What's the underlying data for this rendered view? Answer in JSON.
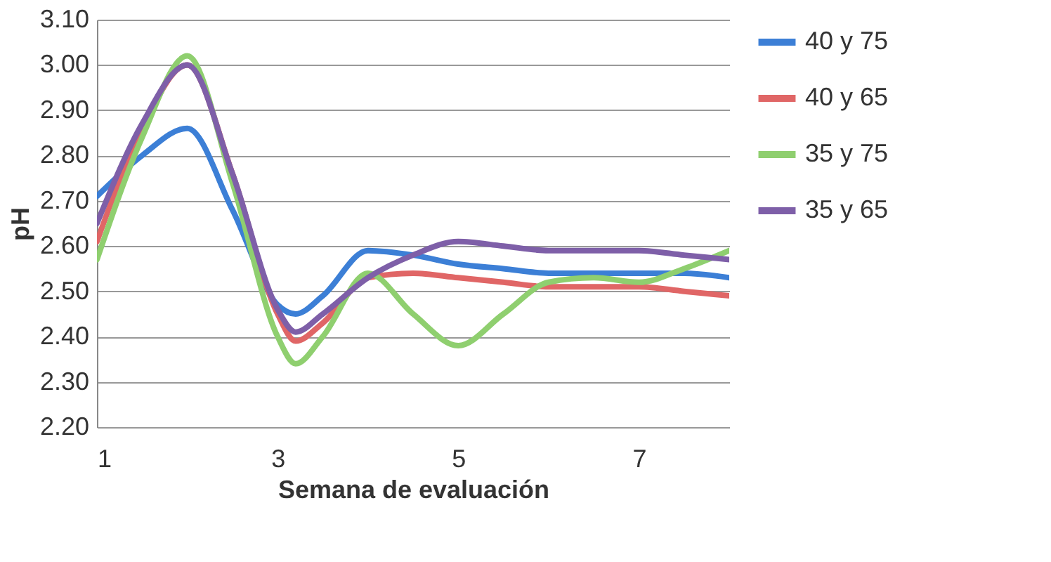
{
  "chart_data": {
    "type": "line",
    "xlabel": "Semana de evaluación",
    "ylabel": "pH",
    "x": [
      1,
      1.5,
      2,
      2.5,
      3,
      3.2,
      3.5,
      4,
      4.5,
      5,
      5.5,
      6,
      6.5,
      7,
      7.5,
      8
    ],
    "series": [
      {
        "name": "40 y 75",
        "color": "#3c7fd6",
        "values": [
          2.71,
          2.8,
          2.86,
          2.68,
          2.47,
          2.45,
          2.49,
          2.59,
          2.58,
          2.56,
          2.55,
          2.54,
          2.54,
          2.54,
          2.54,
          2.53
        ]
      },
      {
        "name": "40 y 65",
        "color": "#e06666",
        "values": [
          2.61,
          2.86,
          3.0,
          2.76,
          2.45,
          2.39,
          2.43,
          2.53,
          2.54,
          2.53,
          2.52,
          2.51,
          2.51,
          2.51,
          2.5,
          2.49
        ]
      },
      {
        "name": "35 y 75",
        "color": "#8fcf6f",
        "values": [
          2.57,
          2.84,
          3.02,
          2.74,
          2.4,
          2.34,
          2.4,
          2.54,
          2.45,
          2.38,
          2.45,
          2.52,
          2.53,
          2.52,
          2.55,
          2.59
        ]
      },
      {
        "name": "35 y 65",
        "color": "#7e5fa8",
        "values": [
          2.65,
          2.87,
          3.0,
          2.76,
          2.46,
          2.41,
          2.45,
          2.53,
          2.58,
          2.61,
          2.6,
          2.59,
          2.59,
          2.59,
          2.58,
          2.57
        ]
      }
    ],
    "xlim": [
      1,
      8
    ],
    "xticks": [
      1,
      3,
      5,
      7
    ],
    "ylim": [
      2.2,
      3.1
    ],
    "yticks": [
      {
        "value": 2.2,
        "label": "2.20"
      },
      {
        "value": 2.3,
        "label": "2.30"
      },
      {
        "value": 2.4,
        "label": "2.40"
      },
      {
        "value": 2.5,
        "label": "2.50"
      },
      {
        "value": 2.6,
        "label": "2.60"
      },
      {
        "value": 2.7,
        "label": "2.70"
      },
      {
        "value": 2.8,
        "label": "2.80"
      },
      {
        "value": 2.9,
        "label": "2.90"
      },
      {
        "value": 3.0,
        "label": "3.00"
      },
      {
        "value": 3.1,
        "label": "3.10"
      }
    ],
    "grid": "y",
    "legend": "right",
    "marker": "none",
    "line_style": "solid"
  }
}
